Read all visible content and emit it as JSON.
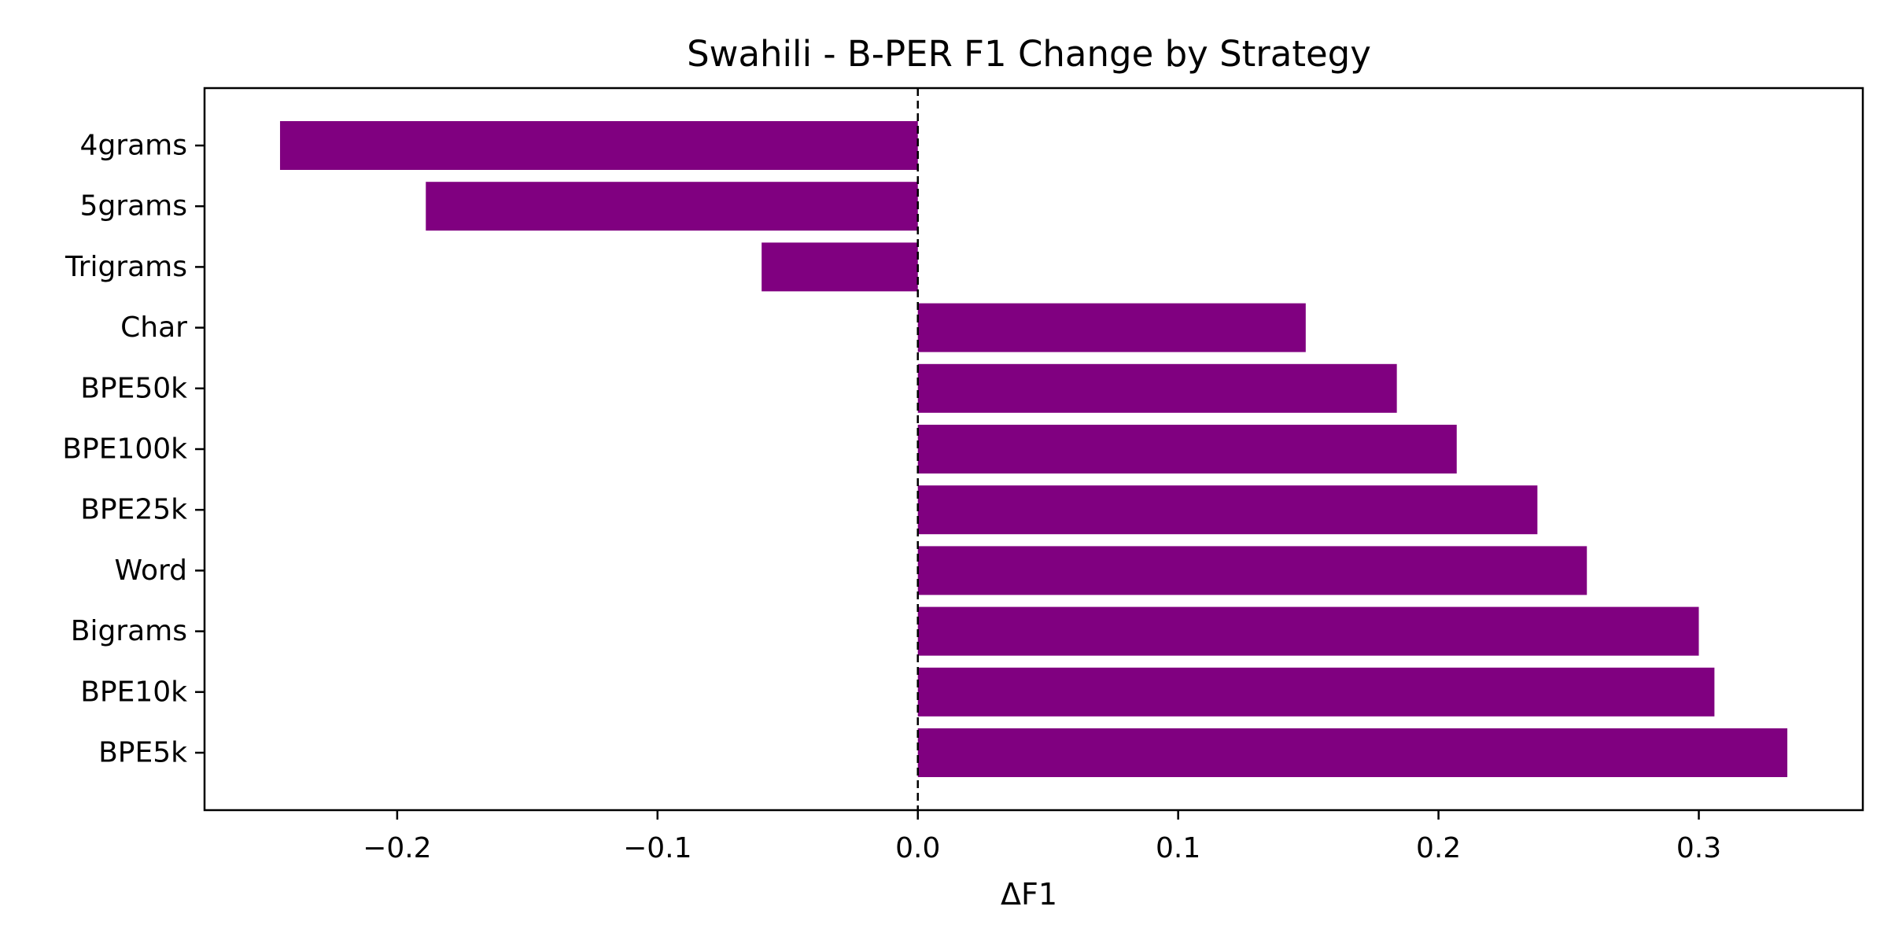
{
  "chart_data": {
    "type": "bar",
    "orientation": "horizontal",
    "title": "Swahili - B-PER F1 Change by Strategy",
    "xlabel": "ΔF1",
    "ylabel": "",
    "categories": [
      "4grams",
      "5grams",
      "Trigrams",
      "Char",
      "BPE50k",
      "BPE100k",
      "BPE25k",
      "Word",
      "Bigrams",
      "BPE10k",
      "BPE5k"
    ],
    "values": [
      -0.245,
      -0.189,
      -0.06,
      0.149,
      0.184,
      0.207,
      0.238,
      0.257,
      0.3,
      0.306,
      0.334
    ],
    "xlim": [
      -0.274,
      0.363
    ],
    "xticks": [
      -0.2,
      -0.1,
      0.0,
      0.1,
      0.2,
      0.3
    ],
    "xtick_labels": [
      "−0.2",
      "−0.1",
      "0.0",
      "0.1",
      "0.2",
      "0.3"
    ],
    "reference_line": 0.0,
    "grid": false,
    "legend": "none",
    "colors": {
      "bar": "#800080",
      "axis": "#000000",
      "reference_line": "#000000"
    }
  }
}
